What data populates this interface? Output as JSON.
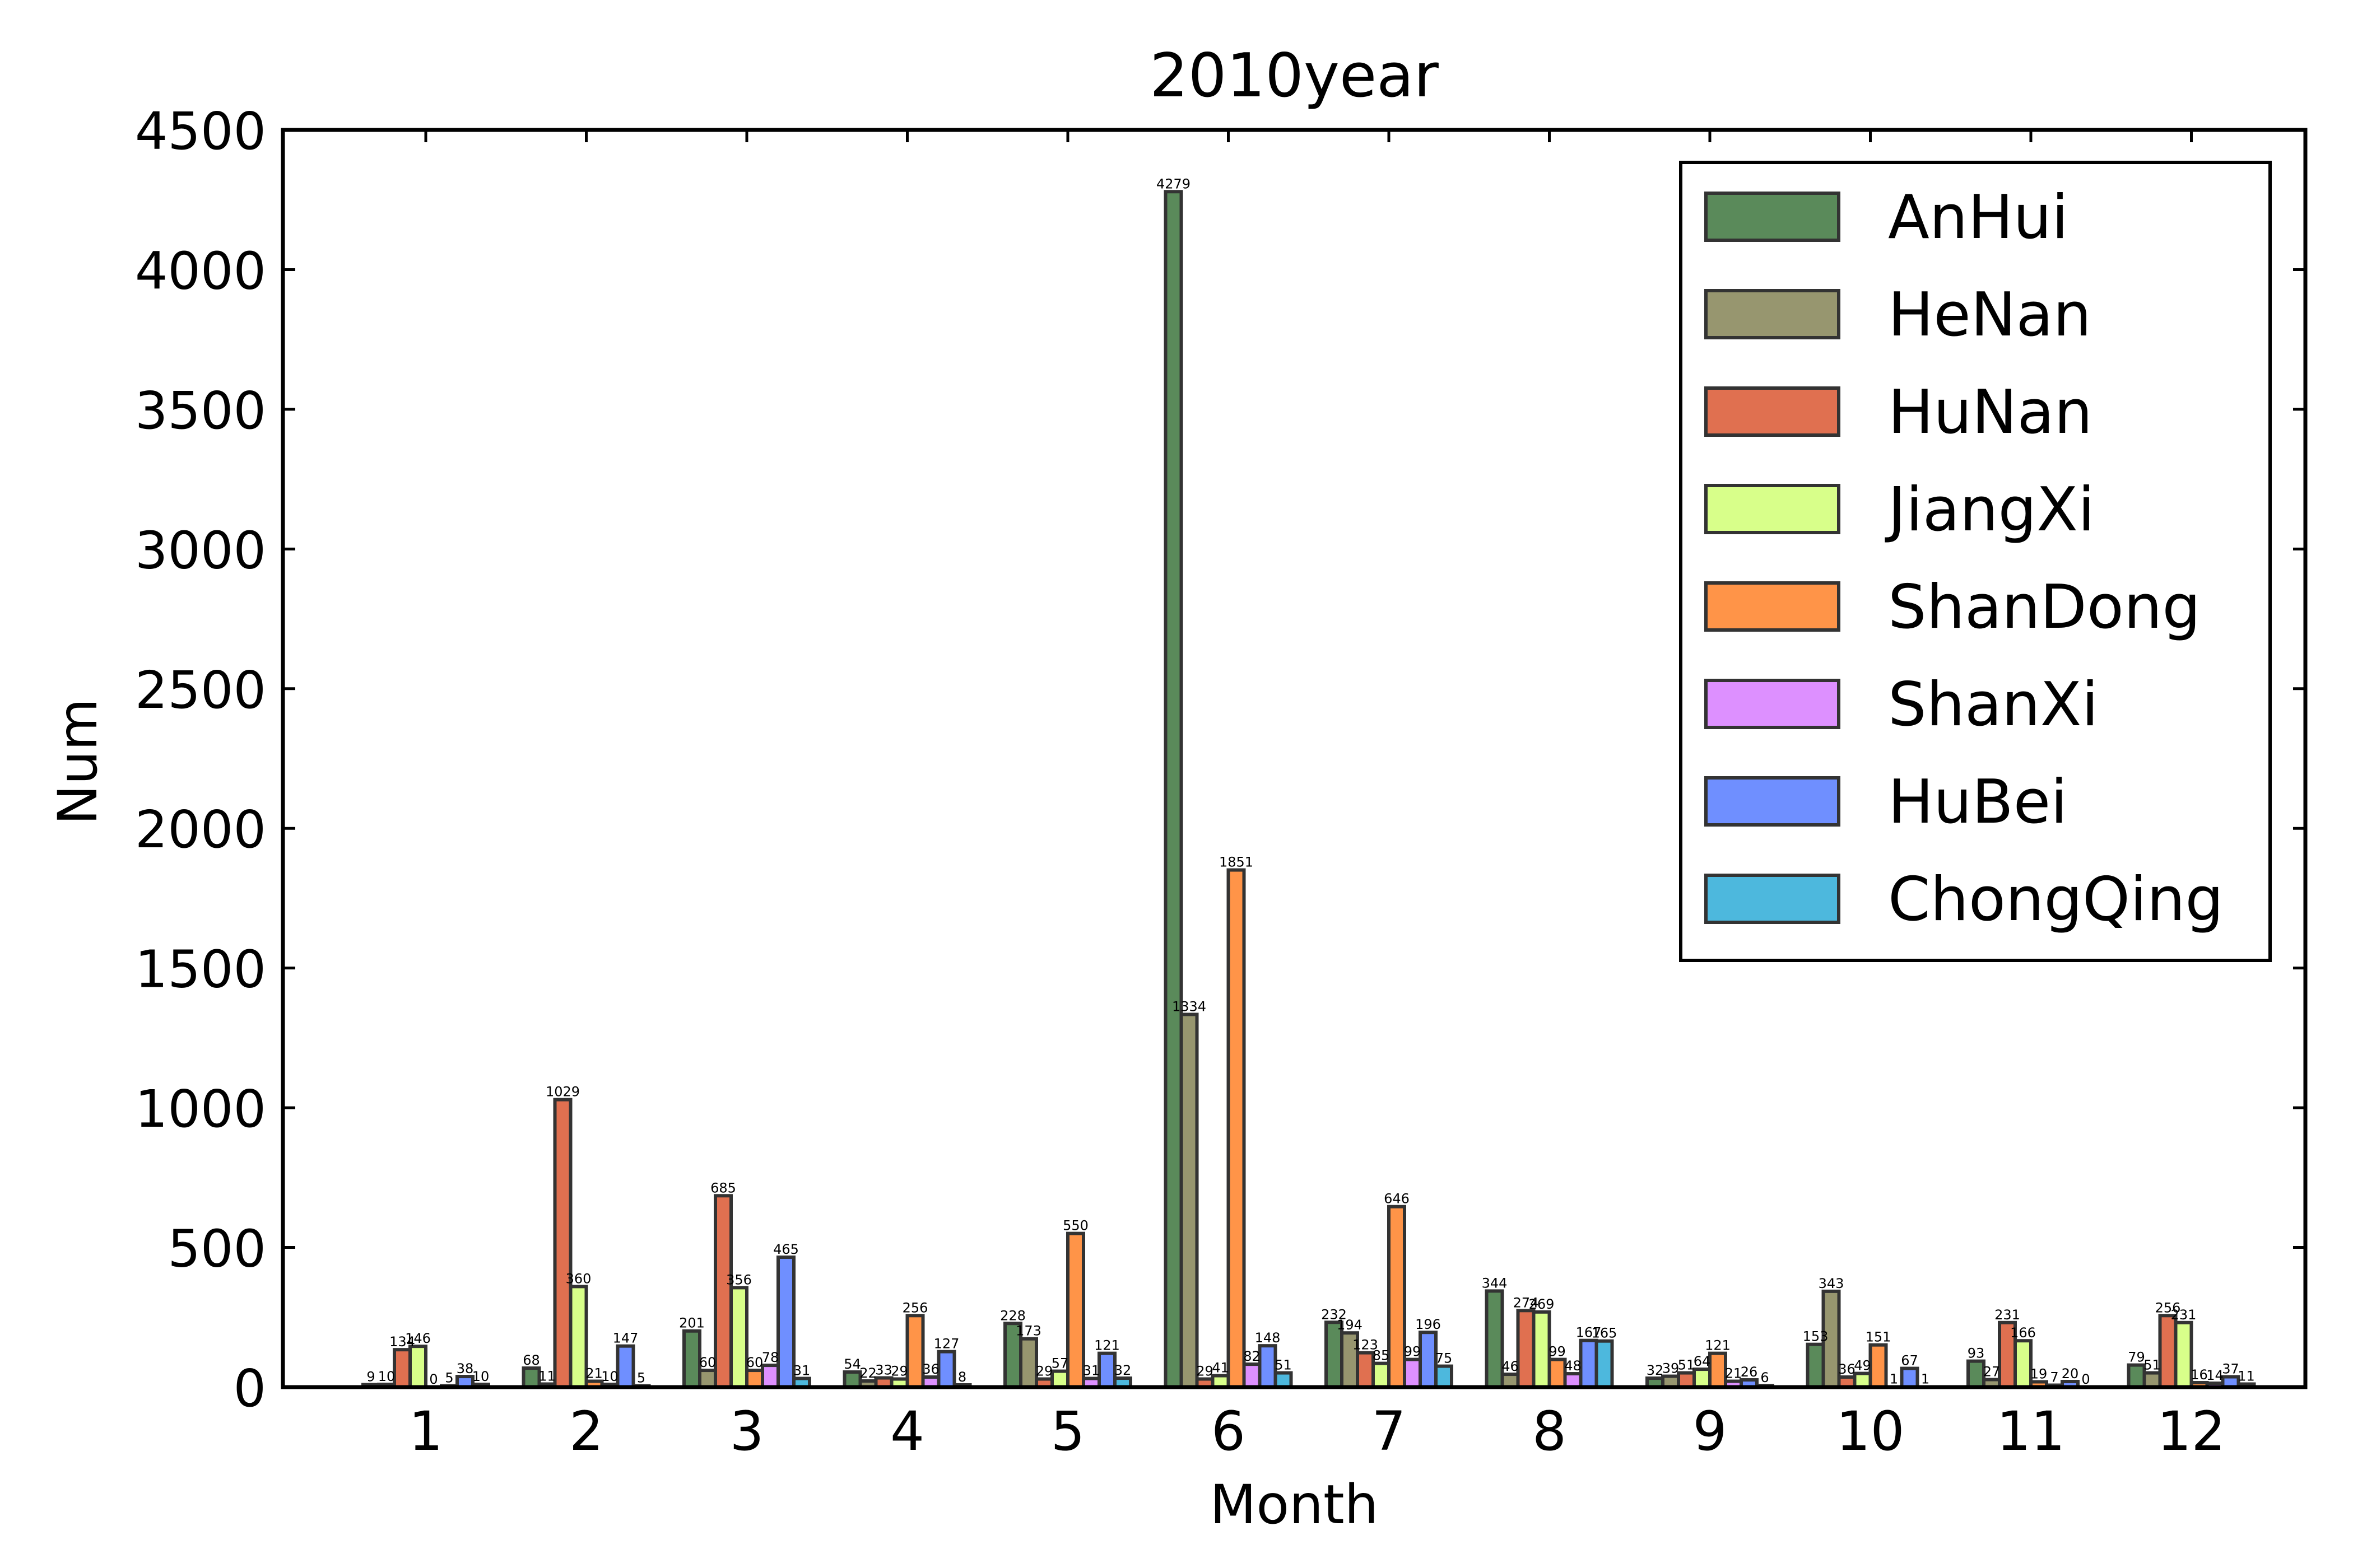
{
  "chart_data": {
    "type": "bar",
    "title": "2010year",
    "xlabel": "Month",
    "ylabel": "Num",
    "ylim": [
      0,
      4500
    ],
    "yticks": [
      0,
      500,
      1000,
      1500,
      2000,
      2500,
      3000,
      3500,
      4000,
      4500
    ],
    "categories": [
      "1",
      "2",
      "3",
      "4",
      "5",
      "6",
      "7",
      "8",
      "9",
      "10",
      "11",
      "12"
    ],
    "legend_position": "top-right",
    "grid": false,
    "series": [
      {
        "name": "AnHui",
        "color": "#5a8a5a",
        "values": [
          9,
          68,
          201,
          54,
          228,
          4279,
          232,
          344,
          32,
          153,
          93,
          79
        ]
      },
      {
        "name": "HeNan",
        "color": "#97966f",
        "values": [
          10,
          11,
          60,
          22,
          173,
          1334,
          194,
          46,
          39,
          343,
          27,
          51
        ]
      },
      {
        "name": "HuNan",
        "color": "#e07050",
        "values": [
          134,
          1029,
          685,
          33,
          29,
          29,
          123,
          274,
          51,
          36,
          231,
          256
        ]
      },
      {
        "name": "JiangXi",
        "color": "#d8ff8a",
        "values": [
          146,
          360,
          356,
          29,
          57,
          41,
          85,
          269,
          64,
          49,
          166,
          231
        ]
      },
      {
        "name": "ShanDong",
        "color": "#ff9448",
        "values": [
          0,
          21,
          60,
          256,
          550,
          1851,
          646,
          99,
          121,
          151,
          19,
          16
        ]
      },
      {
        "name": "ShanXi",
        "color": "#dd90ff",
        "values": [
          5,
          10,
          78,
          36,
          31,
          82,
          99,
          48,
          21,
          1,
          7,
          14
        ]
      },
      {
        "name": "HuBei",
        "color": "#6f8fff",
        "values": [
          38,
          147,
          465,
          127,
          121,
          148,
          196,
          167,
          26,
          67,
          20,
          37
        ]
      },
      {
        "name": "ChongQing",
        "color": "#4db8dd",
        "values": [
          10,
          5,
          31,
          8,
          32,
          51,
          75,
          165,
          6,
          1,
          0,
          11
        ]
      }
    ]
  }
}
